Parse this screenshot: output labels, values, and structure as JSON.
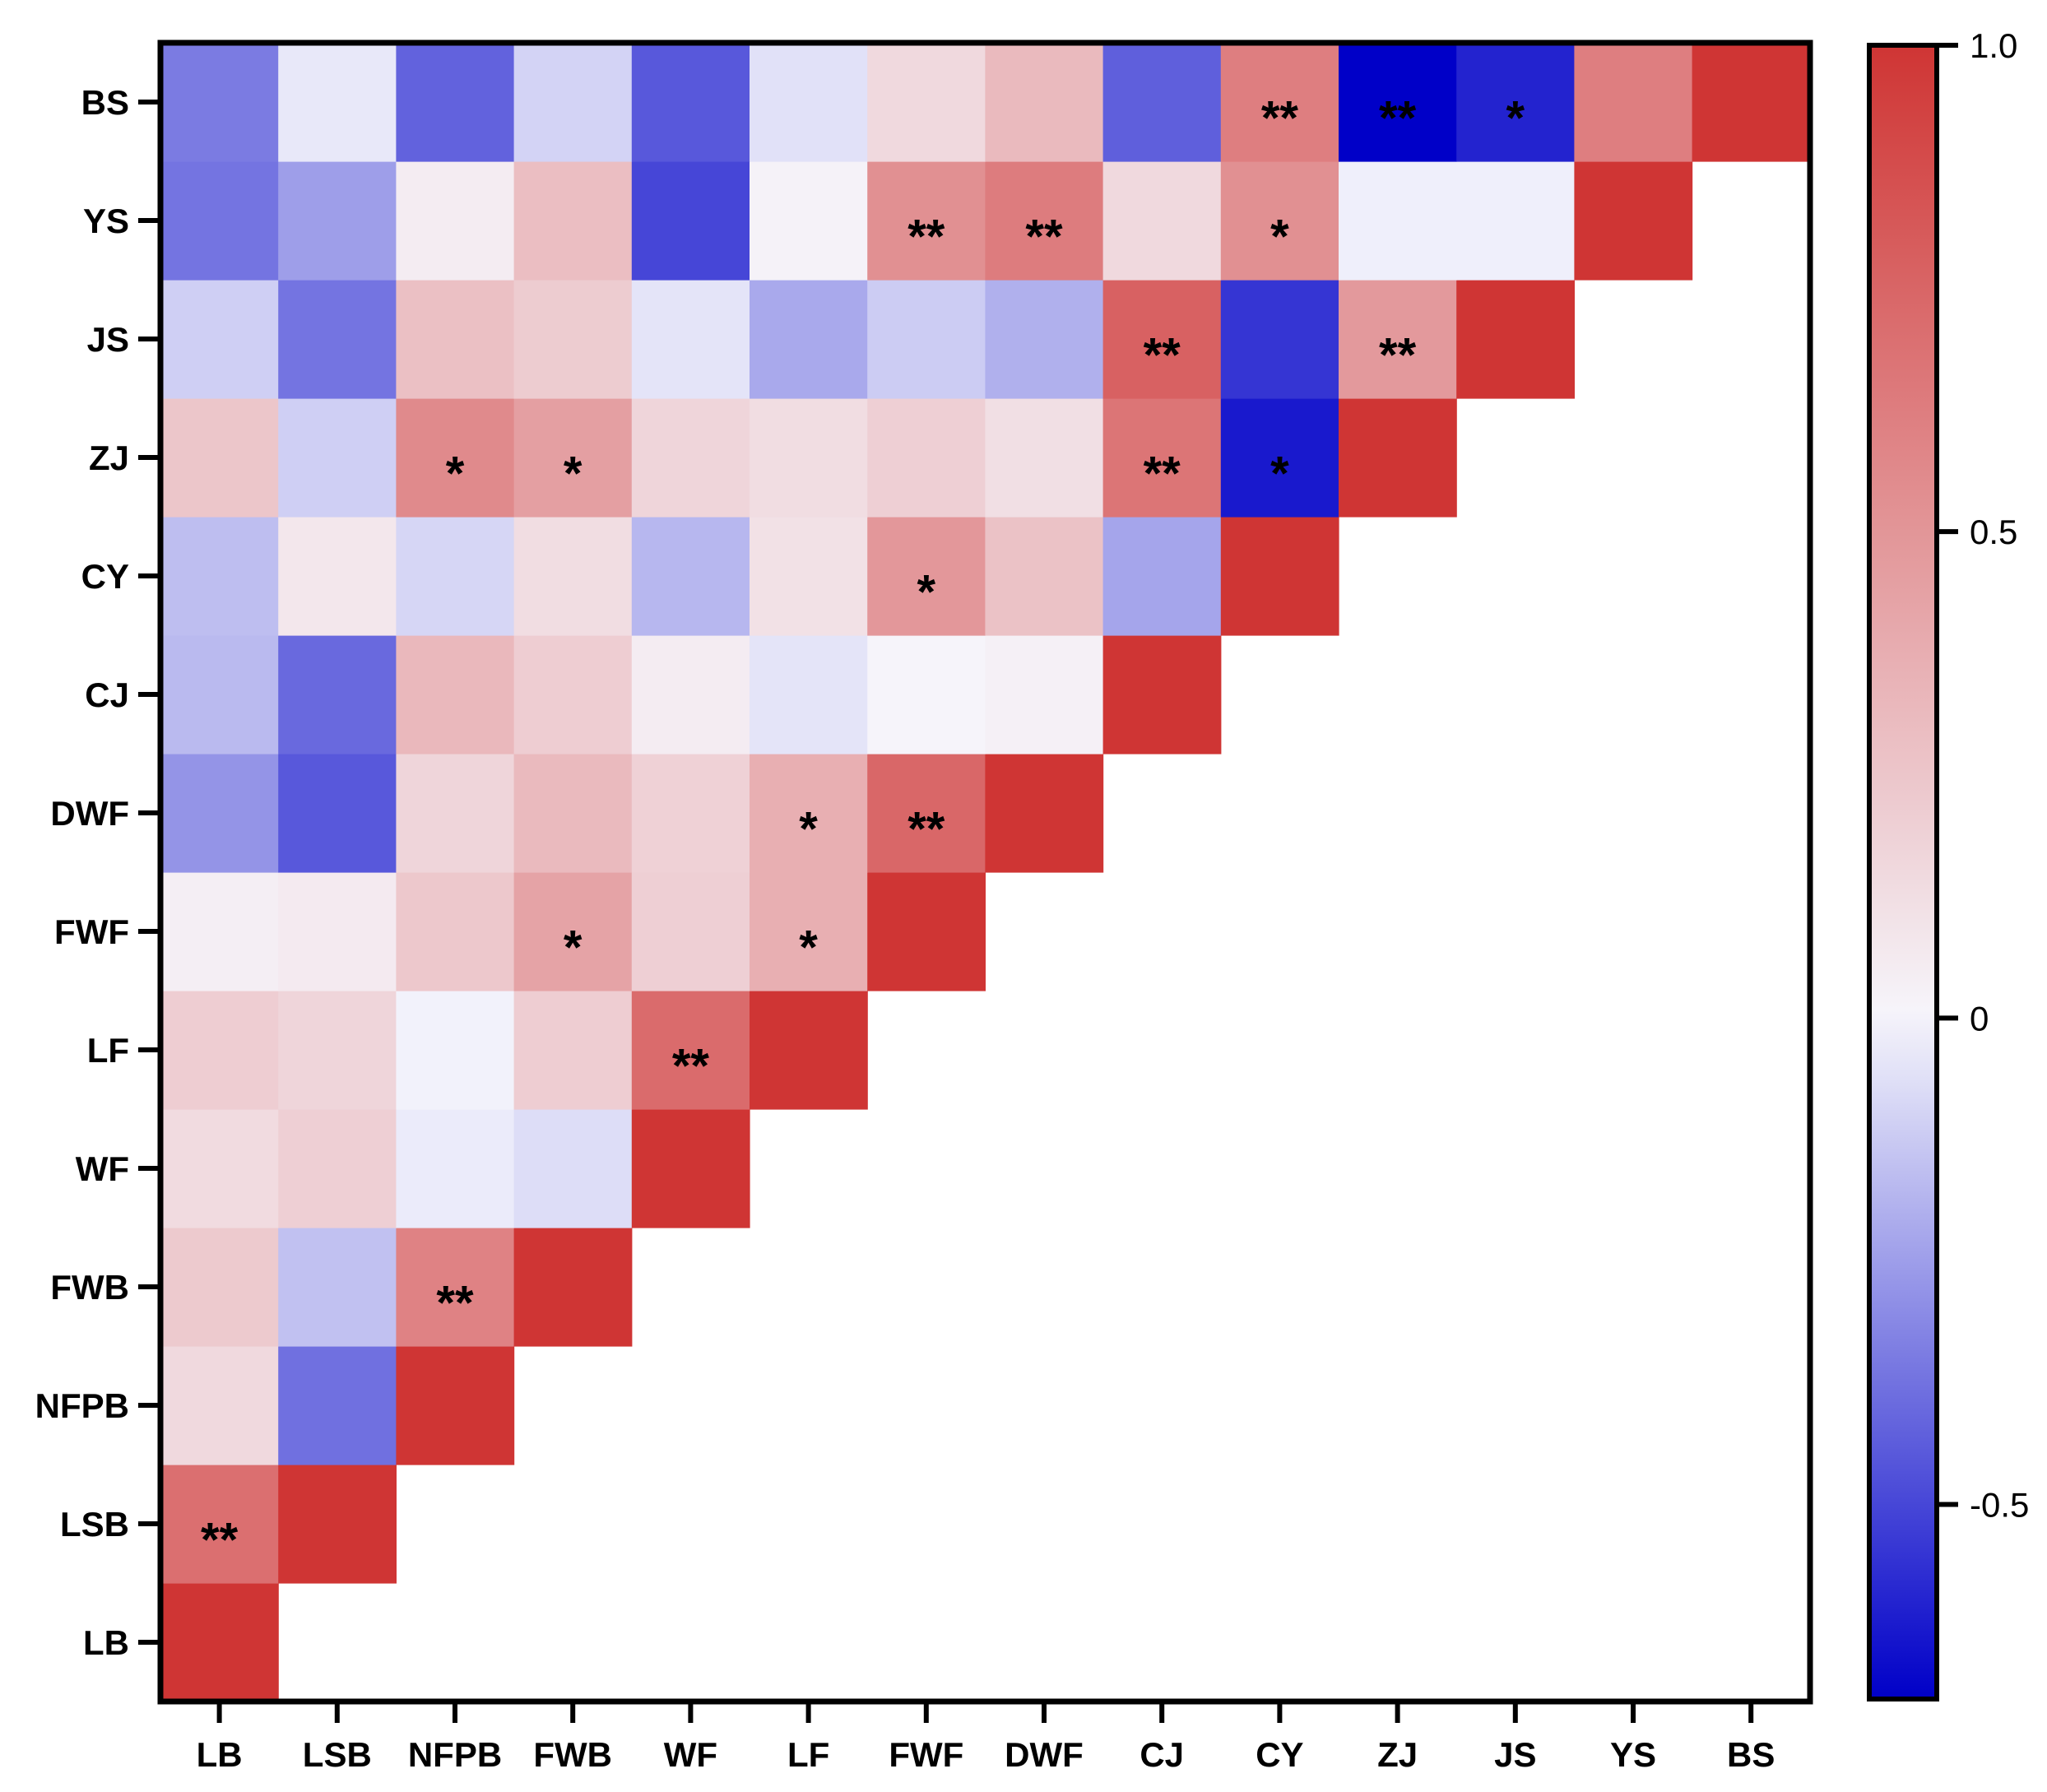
{
  "chart_data": {
    "type": "heatmap",
    "title": "",
    "xlabel": "",
    "ylabel": "",
    "variables": [
      "LB",
      "LSB",
      "NFPB",
      "FWB",
      "WF",
      "LF",
      "FWF",
      "DWF",
      "CJ",
      "CY",
      "ZJ",
      "JS",
      "YS",
      "BS"
    ],
    "x_categories": [
      "LB",
      "LSB",
      "NFPB",
      "FWB",
      "WF",
      "LF",
      "FWF",
      "DWF",
      "CJ",
      "CY",
      "ZJ",
      "JS",
      "YS",
      "BS"
    ],
    "y_categories_top_to_bottom": [
      "BS",
      "YS",
      "JS",
      "ZJ",
      "CY",
      "CJ",
      "DWF",
      "FWF",
      "LF",
      "WF",
      "FWB",
      "NFPB",
      "LSB",
      "LB"
    ],
    "matrix_lower_triangle": [
      [
        1.0
      ],
      [
        0.7,
        1.0
      ],
      [
        0.15,
        -0.38,
        1.0
      ],
      [
        0.23,
        -0.15,
        0.6,
        1.0
      ],
      [
        0.14,
        0.2,
        -0.03,
        -0.07,
        1.0
      ],
      [
        0.21,
        0.17,
        -0.01,
        0.21,
        0.72,
        1.0
      ],
      [
        0.04,
        0.06,
        0.24,
        0.43,
        0.2,
        0.37,
        1.0
      ],
      [
        -0.28,
        -0.45,
        0.17,
        0.31,
        0.19,
        0.37,
        0.74,
        1.0
      ],
      [
        -0.17,
        -0.4,
        0.32,
        0.21,
        0.05,
        -0.05,
        0.01,
        0.03,
        1.0
      ],
      [
        -0.16,
        0.08,
        -0.09,
        0.13,
        -0.18,
        0.11,
        0.49,
        0.27,
        -0.23,
        1.0
      ],
      [
        0.25,
        -0.11,
        0.56,
        0.45,
        0.17,
        0.13,
        0.2,
        0.12,
        0.67,
        -0.63,
        1.0
      ],
      [
        -0.11,
        -0.37,
        0.28,
        0.22,
        -0.05,
        -0.22,
        -0.12,
        -0.2,
        0.77,
        -0.55,
        0.48,
        1.0
      ],
      [
        -0.37,
        -0.25,
        0.05,
        0.29,
        -0.5,
        0.02,
        0.53,
        0.63,
        0.15,
        0.53,
        -0.02,
        -0.02,
        1.0
      ],
      [
        -0.35,
        -0.04,
        -0.42,
        -0.1,
        -0.45,
        -0.06,
        0.15,
        0.31,
        -0.43,
        0.62,
        -0.95,
        -0.6,
        0.62,
        1.0
      ]
    ],
    "significance_lower_triangle": [
      [
        ""
      ],
      [
        "**",
        ""
      ],
      [
        "",
        "",
        ""
      ],
      [
        "",
        "",
        "**",
        ""
      ],
      [
        "",
        "",
        "",
        "",
        ""
      ],
      [
        "",
        "",
        "",
        "",
        "**",
        ""
      ],
      [
        "",
        "",
        "",
        "*",
        "",
        "*",
        ""
      ],
      [
        "",
        "",
        "",
        "",
        "",
        "*",
        "**",
        ""
      ],
      [
        "",
        "",
        "",
        "",
        "",
        "",
        "",
        "",
        ""
      ],
      [
        "",
        "",
        "",
        "",
        "",
        "",
        "*",
        "",
        "",
        ""
      ],
      [
        "",
        "",
        "*",
        "*",
        "",
        "",
        "",
        "",
        "**",
        "*",
        ""
      ],
      [
        "",
        "",
        "",
        "",
        "",
        "",
        "",
        "",
        "**",
        "",
        "**",
        ""
      ],
      [
        "",
        "",
        "",
        "",
        "",
        "",
        "**",
        "**",
        "",
        "*",
        "",
        "",
        ""
      ],
      [
        "",
        "",
        "",
        "",
        "",
        "",
        "",
        "",
        "",
        "**",
        "**",
        "*",
        "",
        ""
      ]
    ],
    "colorbar": {
      "min": -0.7,
      "max": 1.0,
      "ticks": [
        1.0,
        0.5,
        0,
        -0.5
      ],
      "tick_labels": [
        "1.0",
        "0.5",
        "0",
        "-0.5"
      ],
      "low_color": "#0000c8",
      "mid_color": "#f6f6fc",
      "high_color": "#cf3534"
    },
    "grid": false,
    "legend": "colorbar-right"
  }
}
